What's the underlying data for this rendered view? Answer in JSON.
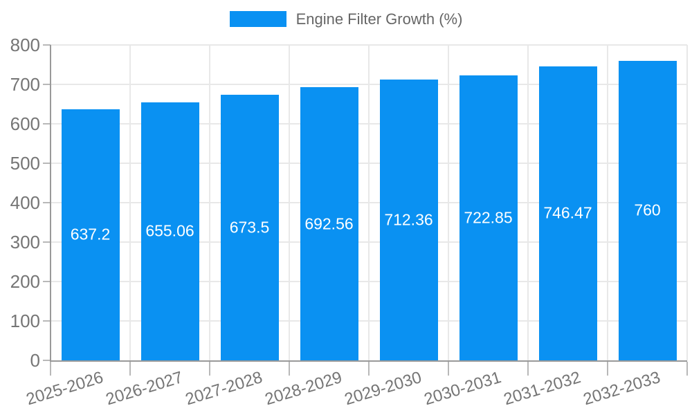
{
  "legend": {
    "swatch_color": "#0a91f2"
  },
  "chart_data": {
    "type": "bar",
    "title": "Engine Filter Growth (%)",
    "categories": [
      "2025-2026",
      "2026-2027",
      "2027-2028",
      "2028-2029",
      "2029-2030",
      "2030-2031",
      "2031-2032",
      "2032-2033"
    ],
    "series": [
      {
        "name": "Engine Filter Growth (%)",
        "values": [
          637.2,
          655.06,
          673.5,
          692.56,
          712.36,
          722.85,
          746.47,
          760
        ],
        "value_labels": [
          "637.2",
          "655.06",
          "673.5",
          "692.56",
          "712.36",
          "722.85",
          "746.47",
          "760"
        ]
      }
    ],
    "xlabel": "",
    "ylabel": "",
    "ylim": [
      0,
      800
    ],
    "ytick_step": 100,
    "ytick_labels": [
      "0",
      "100",
      "200",
      "300",
      "400",
      "500",
      "600",
      "700",
      "800"
    ],
    "grid": true,
    "legend_position": "top",
    "colors": {
      "bar": "#0a91f2",
      "value_label": "#ffffff",
      "axis": "#999999",
      "gridline": "#e8e8e8",
      "tick": "#b8b8b8",
      "tick_label": "#757575",
      "legend_text": "#666666",
      "background": "#ffffff"
    }
  }
}
